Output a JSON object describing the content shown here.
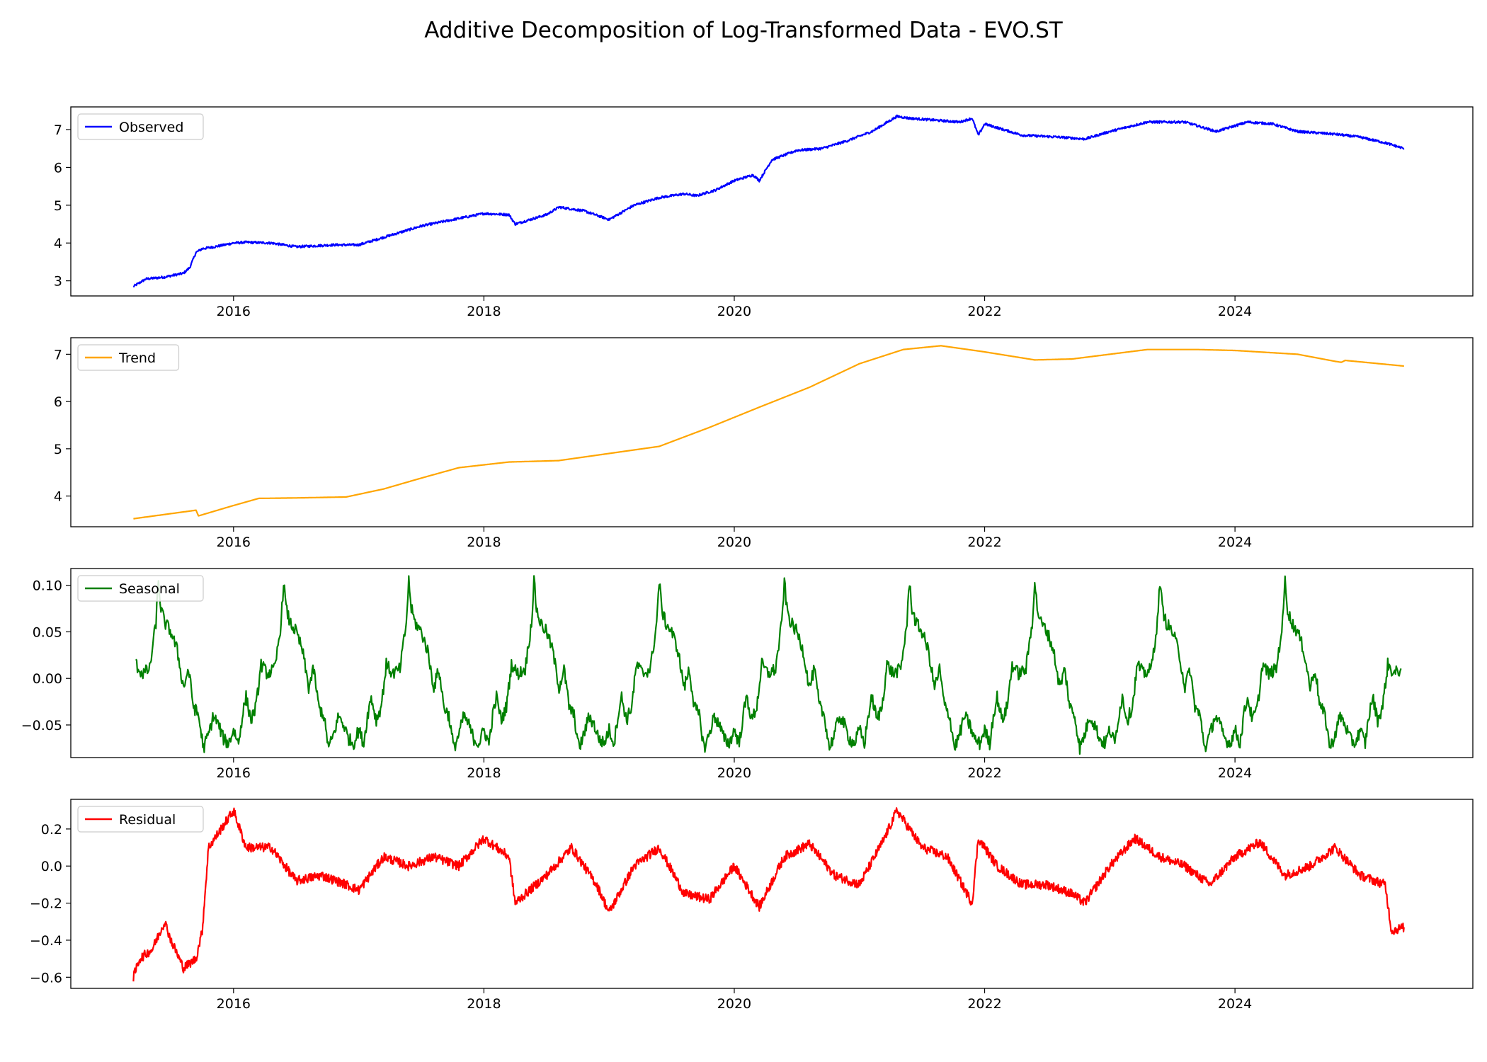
{
  "title": "Additive Decomposition of Log-Transformed Data - EVO.ST",
  "chart_data": [
    {
      "type": "line",
      "legend": "Observed",
      "legend_loc": "upper left",
      "color": "#0000ff",
      "xlim": [
        2014.7,
        2025.9
      ],
      "ylim": [
        2.6,
        7.6
      ],
      "x_ticks": [
        2016,
        2018,
        2020,
        2022,
        2024
      ],
      "x_tick_labels": [
        "2016",
        "2018",
        "2020",
        "2022",
        "2024"
      ],
      "y_ticks": [
        3,
        4,
        5,
        6,
        7
      ],
      "y_tick_labels": [
        "3",
        "4",
        "5",
        "6",
        "7"
      ],
      "series": [
        {
          "name": "Observed",
          "x": [
            2015.2,
            2015.3,
            2015.45,
            2015.6,
            2015.65,
            2015.7,
            2015.75,
            2015.85,
            2016.0,
            2016.1,
            2016.3,
            2016.5,
            2016.8,
            2017.0,
            2017.25,
            2017.5,
            2017.8,
            2018.0,
            2018.2,
            2018.25,
            2018.5,
            2018.6,
            2018.8,
            2019.0,
            2019.2,
            2019.4,
            2019.6,
            2019.7,
            2019.85,
            2020.0,
            2020.15,
            2020.2,
            2020.3,
            2020.5,
            2020.7,
            2020.9,
            2021.1,
            2021.3,
            2021.4,
            2021.6,
            2021.8,
            2021.9,
            2021.95,
            2022.0,
            2022.3,
            2022.6,
            2022.8,
            2023.0,
            2023.3,
            2023.6,
            2023.85,
            2024.1,
            2024.3,
            2024.5,
            2024.8,
            2025.0,
            2025.2,
            2025.35
          ],
          "y": [
            2.85,
            3.05,
            3.1,
            3.2,
            3.35,
            3.75,
            3.85,
            3.9,
            4.0,
            4.02,
            4.0,
            3.9,
            3.95,
            3.95,
            4.2,
            4.45,
            4.65,
            4.78,
            4.75,
            4.5,
            4.75,
            4.95,
            4.85,
            4.62,
            5.0,
            5.2,
            5.3,
            5.25,
            5.4,
            5.65,
            5.8,
            5.65,
            6.2,
            6.45,
            6.5,
            6.7,
            6.95,
            7.35,
            7.3,
            7.25,
            7.2,
            7.3,
            6.85,
            7.15,
            6.85,
            6.8,
            6.75,
            6.95,
            7.2,
            7.2,
            6.95,
            7.2,
            7.15,
            6.95,
            6.88,
            6.8,
            6.65,
            6.5
          ]
        }
      ]
    },
    {
      "type": "line",
      "legend": "Trend",
      "legend_loc": "upper left",
      "color": "#ffa500",
      "xlim": [
        2014.7,
        2025.9
      ],
      "ylim": [
        3.35,
        7.35
      ],
      "x_ticks": [
        2016,
        2018,
        2020,
        2022,
        2024
      ],
      "x_tick_labels": [
        "2016",
        "2018",
        "2020",
        "2022",
        "2024"
      ],
      "y_ticks": [
        4,
        5,
        6,
        7
      ],
      "y_tick_labels": [
        "4",
        "5",
        "6",
        "7"
      ],
      "series": [
        {
          "name": "Trend",
          "x": [
            2015.2,
            2015.7,
            2015.72,
            2016.0,
            2016.2,
            2016.5,
            2016.9,
            2017.2,
            2017.5,
            2017.8,
            2018.2,
            2018.6,
            2019.0,
            2019.4,
            2019.8,
            2020.2,
            2020.6,
            2021.0,
            2021.35,
            2021.65,
            2022.0,
            2022.4,
            2022.7,
            2023.0,
            2023.3,
            2023.7,
            2024.0,
            2024.5,
            2024.8,
            2024.85,
            2024.88,
            2025.35
          ],
          "y": [
            3.52,
            3.7,
            3.58,
            3.8,
            3.95,
            3.96,
            3.98,
            4.15,
            4.38,
            4.6,
            4.72,
            4.75,
            4.9,
            5.05,
            5.45,
            5.88,
            6.3,
            6.8,
            7.1,
            7.18,
            7.05,
            6.88,
            6.9,
            7.0,
            7.1,
            7.1,
            7.08,
            7.0,
            6.85,
            6.83,
            6.87,
            6.75
          ]
        }
      ]
    },
    {
      "type": "line",
      "legend": "Seasonal",
      "legend_loc": "upper left",
      "color": "#008000",
      "xlim": [
        2014.7,
        2025.9
      ],
      "ylim": [
        -0.085,
        0.118
      ],
      "x_ticks": [
        2016,
        2018,
        2020,
        2022,
        2024
      ],
      "x_tick_labels": [
        "2016",
        "2018",
        "2020",
        "2022",
        "2024"
      ],
      "y_ticks": [
        -0.05,
        0.0,
        0.05,
        0.1
      ],
      "y_tick_labels": [
        "−0.05",
        "0.00",
        "0.05",
        "0.10"
      ],
      "series": [
        {
          "name": "Seasonal",
          "period_years": 1.0,
          "phase_x": [
            0.0,
            0.04,
            0.07,
            0.1,
            0.14,
            0.18,
            0.22,
            0.27,
            0.33,
            0.38,
            0.4,
            0.42,
            0.45,
            0.5,
            0.55,
            0.6,
            0.64,
            0.68,
            0.72,
            0.76,
            0.8,
            0.84,
            0.88,
            0.92,
            0.96,
            1.0
          ],
          "phase_y": [
            -0.055,
            -0.07,
            -0.04,
            -0.02,
            -0.045,
            -0.03,
            0.015,
            0.005,
            0.01,
            0.06,
            0.105,
            0.075,
            0.06,
            0.05,
            0.03,
            -0.01,
            0.01,
            -0.03,
            -0.04,
            -0.075,
            -0.06,
            -0.04,
            -0.05,
            -0.065,
            -0.07,
            -0.055
          ],
          "x_start": 2015.2,
          "x_end": 2025.35
        }
      ]
    },
    {
      "type": "line",
      "legend": "Residual",
      "legend_loc": "upper left",
      "color": "#ff0000",
      "xlim": [
        2014.7,
        2025.9
      ],
      "ylim": [
        -0.66,
        0.36
      ],
      "x_ticks": [
        2016,
        2018,
        2020,
        2022,
        2024
      ],
      "x_tick_labels": [
        "2016",
        "2018",
        "2020",
        "2022",
        "2024"
      ],
      "y_ticks": [
        -0.6,
        -0.4,
        -0.2,
        0.0,
        0.2
      ],
      "y_tick_labels": [
        "−0.6",
        "−0.4",
        "−0.2",
        "0.0",
        "0.2"
      ],
      "series": [
        {
          "name": "Residual",
          "x": [
            2015.2,
            2015.25,
            2015.35,
            2015.45,
            2015.5,
            2015.6,
            2015.7,
            2015.75,
            2015.8,
            2015.9,
            2016.0,
            2016.1,
            2016.3,
            2016.5,
            2016.7,
            2016.9,
            2017.0,
            2017.2,
            2017.4,
            2017.6,
            2017.8,
            2018.0,
            2018.2,
            2018.25,
            2018.5,
            2018.7,
            2018.9,
            2019.0,
            2019.2,
            2019.4,
            2019.6,
            2019.8,
            2020.0,
            2020.2,
            2020.4,
            2020.6,
            2020.8,
            2021.0,
            2021.2,
            2021.3,
            2021.5,
            2021.7,
            2021.9,
            2021.95,
            2022.1,
            2022.3,
            2022.5,
            2022.7,
            2022.8,
            2023.0,
            2023.2,
            2023.4,
            2023.6,
            2023.8,
            2024.0,
            2024.2,
            2024.4,
            2024.6,
            2024.8,
            2025.0,
            2025.2,
            2025.25,
            2025.35
          ],
          "y": [
            -0.6,
            -0.5,
            -0.45,
            -0.3,
            -0.4,
            -0.55,
            -0.5,
            -0.35,
            0.1,
            0.2,
            0.3,
            0.1,
            0.1,
            -0.08,
            -0.05,
            -0.1,
            -0.13,
            0.05,
            0.0,
            0.05,
            0.0,
            0.15,
            0.05,
            -0.2,
            -0.05,
            0.1,
            -0.1,
            -0.25,
            0.0,
            0.1,
            -0.15,
            -0.18,
            0.0,
            -0.22,
            0.05,
            0.12,
            -0.05,
            -0.1,
            0.15,
            0.3,
            0.1,
            0.05,
            -0.2,
            0.15,
            0.0,
            -0.1,
            -0.1,
            -0.15,
            -0.2,
            0.0,
            0.15,
            0.05,
            0.0,
            -0.1,
            0.05,
            0.13,
            -0.05,
            0.0,
            0.1,
            -0.05,
            -0.1,
            -0.35,
            -0.33
          ]
        }
      ]
    }
  ]
}
